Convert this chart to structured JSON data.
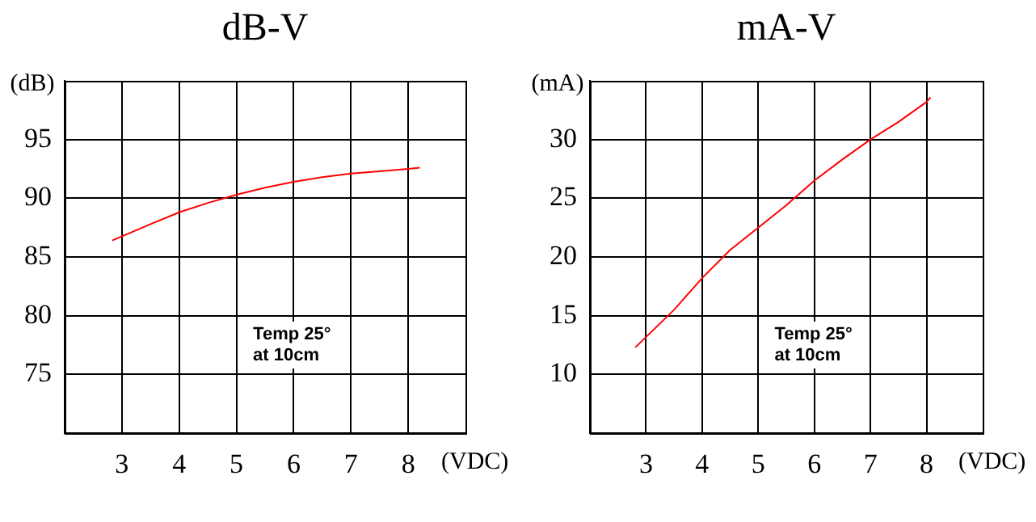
{
  "chart_data": [
    {
      "type": "line",
      "title": "dB-V",
      "xlabel": "(VDC)",
      "ylabel": "(dB)",
      "xlim": [
        2,
        9
      ],
      "ylim": [
        70,
        100
      ],
      "xticks": [
        3,
        4,
        5,
        6,
        7,
        8
      ],
      "yticks": [
        75,
        80,
        85,
        90,
        95
      ],
      "grid": true,
      "legend": false,
      "annotations": [
        "Temp 25°\nat 10cm"
      ],
      "series": [
        {
          "color": "#ff0000",
          "x": [
            2.83,
            3.5,
            4,
            4.5,
            5,
            5.5,
            6,
            6.5,
            7,
            7.5,
            8,
            8.2
          ],
          "values": [
            86.4,
            87.8,
            88.8,
            89.6,
            90.3,
            90.9,
            91.4,
            91.8,
            92.1,
            92.3,
            92.5,
            92.6
          ]
        }
      ]
    },
    {
      "type": "line",
      "title": "mA-V",
      "xlabel": "(VDC)",
      "ylabel": "(mA)",
      "xlim": [
        2,
        9
      ],
      "ylim": [
        5,
        35
      ],
      "xticks": [
        3,
        4,
        5,
        6,
        7,
        8
      ],
      "yticks": [
        10,
        15,
        20,
        25,
        30
      ],
      "grid": true,
      "legend": false,
      "annotations": [
        "Temp 25°\nat 10cm"
      ],
      "series": [
        {
          "color": "#ff0000",
          "x": [
            2.81,
            3.5,
            4,
            4.5,
            5,
            5.5,
            6,
            6.5,
            7,
            7.5,
            8,
            8.07
          ],
          "values": [
            12.3,
            15.5,
            18.2,
            20.6,
            22.5,
            24.4,
            26.5,
            28.3,
            30,
            31.5,
            33.2,
            33.6
          ]
        }
      ]
    }
  ]
}
